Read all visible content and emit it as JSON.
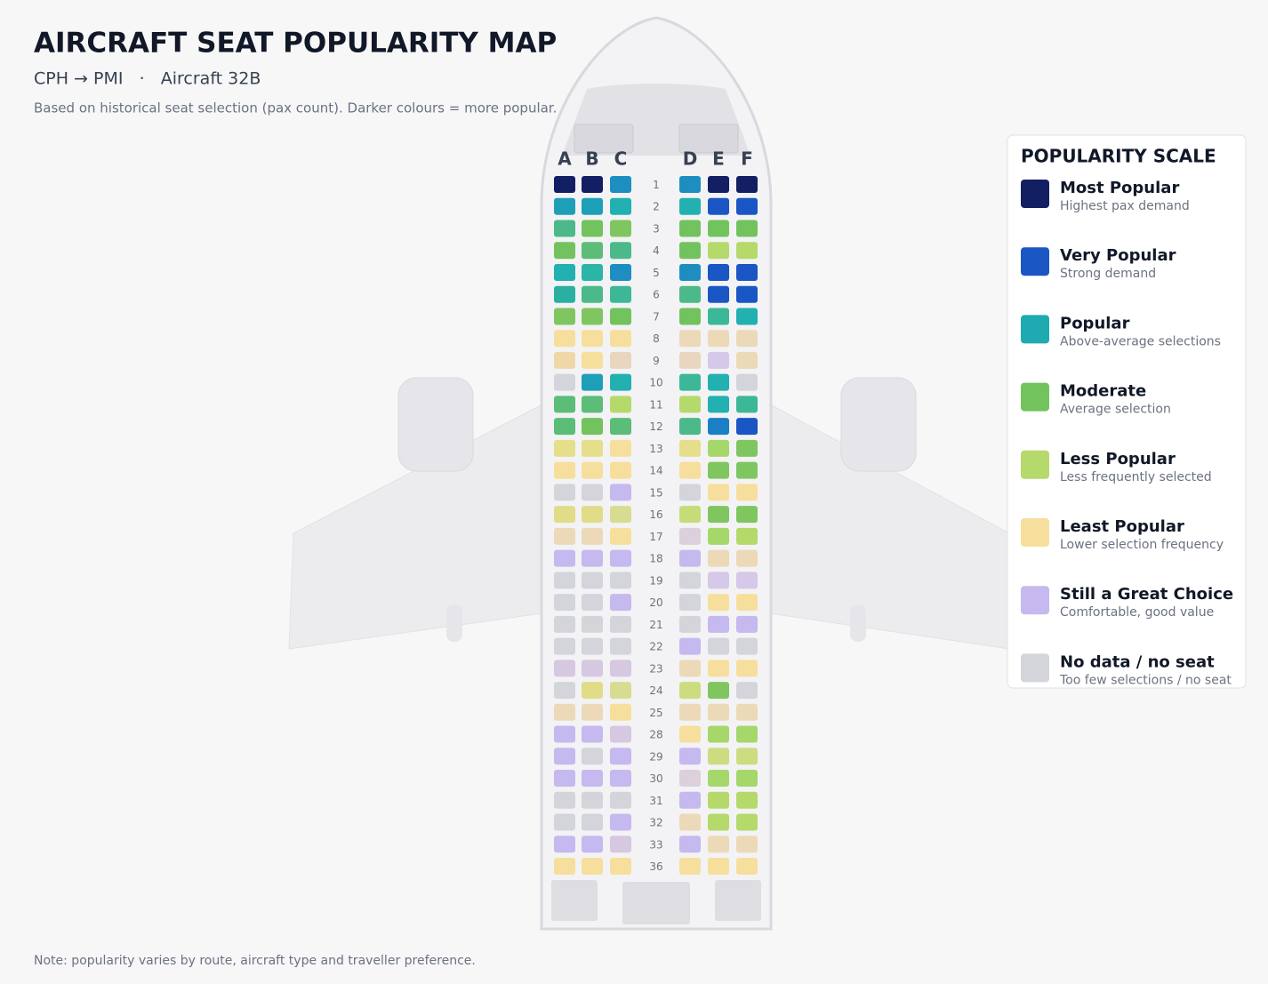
{
  "header": {
    "title": "AIRCRAFT SEAT POPULARITY MAP",
    "subtitle": "CPH → PMI   ·   Aircraft 32B",
    "description": "Based on historical seat selection (pax count). Darker colours = more popular."
  },
  "seat_map": {
    "columns": [
      "A",
      "B",
      "C",
      "D",
      "E",
      "F"
    ],
    "rows": [
      {
        "label": "1",
        "seats": [
          "#131f63",
          "#131f63",
          "#1e8ec0",
          "#1e8ec0",
          "#131f63",
          "#131f63"
        ]
      },
      {
        "label": "2",
        "seats": [
          "#1e9fb8",
          "#1e9fb8",
          "#22b0b0",
          "#22b0b0",
          "#1a56c4",
          "#1a56c4"
        ]
      },
      {
        "label": "3",
        "seats": [
          "#4cb98a",
          "#72c35e",
          "#80c660",
          "#72c35e",
          "#72c35e",
          "#72c35e"
        ]
      },
      {
        "label": "4",
        "seats": [
          "#72c35e",
          "#5cbd78",
          "#4cb98a",
          "#72c35e",
          "#b5d96a",
          "#b5d96a"
        ]
      },
      {
        "label": "5",
        "seats": [
          "#22b0b0",
          "#2ab5a8",
          "#1e8ec0",
          "#1e8ec0",
          "#1a56c4",
          "#1a56c4"
        ]
      },
      {
        "label": "6",
        "seats": [
          "#2ab0a0",
          "#4cb98a",
          "#3cb898",
          "#4cb98a",
          "#1a56c4",
          "#1a56c4"
        ]
      },
      {
        "label": "7",
        "seats": [
          "#80c660",
          "#80c660",
          "#72c35e",
          "#72c35e",
          "#3cb898",
          "#22b0b0"
        ]
      },
      {
        "label": "8",
        "seats": [
          "#f6df9c",
          "#f6df9c",
          "#f6df9c",
          "#ecd9b8",
          "#ecd9b8",
          "#ecd9b8"
        ]
      },
      {
        "label": "9",
        "seats": [
          "#efd8a8",
          "#f6df9c",
          "#e8d6c0",
          "#e8d6c0",
          "#d5c8e8",
          "#ecd9b8"
        ]
      },
      {
        "label": "10",
        "seats": [
          "#d4d5da",
          "#1e9fb8",
          "#22b0b0",
          "#3cb898",
          "#22b0b0",
          "#d4d5da"
        ]
      },
      {
        "label": "11",
        "seats": [
          "#5cbd78",
          "#5cbd78",
          "#b5d96a",
          "#b5d96a",
          "#22b0b0",
          "#3cb898"
        ]
      },
      {
        "label": "12",
        "seats": [
          "#5cbd78",
          "#72c35e",
          "#5cbd78",
          "#4cb98a",
          "#1a7fc4",
          "#1a56c4"
        ]
      },
      {
        "label": "13",
        "seats": [
          "#e5de8a",
          "#e5de8a",
          "#f6df9c",
          "#e5de8a",
          "#a5d76a",
          "#80c660"
        ]
      },
      {
        "label": "14",
        "seats": [
          "#f6df9c",
          "#f6df9c",
          "#f6df9c",
          "#f6df9c",
          "#80c660",
          "#80c660"
        ]
      },
      {
        "label": "15",
        "seats": [
          "#d4d5da",
          "#d4d5da",
          "#c5b9ef",
          "#d4d5da",
          "#f6df9c",
          "#f6df9c"
        ]
      },
      {
        "label": "16",
        "seats": [
          "#e0dc88",
          "#e0dc88",
          "#d8dc90",
          "#c5dc78",
          "#80c660",
          "#80c660"
        ]
      },
      {
        "label": "17",
        "seats": [
          "#ecd9b8",
          "#ecd9b8",
          "#f6df9c",
          "#dcd0dc",
          "#a5d76a",
          "#b5d96a"
        ]
      },
      {
        "label": "18",
        "seats": [
          "#c5b9ef",
          "#c5b9ef",
          "#c5b9ef",
          "#c5b9ef",
          "#ecd9b8",
          "#ecd9b8"
        ]
      },
      {
        "label": "19",
        "seats": [
          "#d4d5da",
          "#d4d5da",
          "#d4d5da",
          "#d4d5da",
          "#d5c8e8",
          "#d5c8e8"
        ]
      },
      {
        "label": "20",
        "seats": [
          "#d4d5da",
          "#d4d5da",
          "#c5b9ef",
          "#d4d5da",
          "#f6df9c",
          "#f6df9c"
        ]
      },
      {
        "label": "21",
        "seats": [
          "#d4d5da",
          "#d4d5da",
          "#d4d5da",
          "#d4d5da",
          "#c5b9ef",
          "#c5b9ef"
        ]
      },
      {
        "label": "22",
        "seats": [
          "#d4d5da",
          "#d4d5da",
          "#d4d5da",
          "#c5b9ef",
          "#d4d5da",
          "#d4d5da"
        ]
      },
      {
        "label": "23",
        "seats": [
          "#d5c8e0",
          "#d5c8e0",
          "#d5c8e0",
          "#ecd9b8",
          "#f6df9c",
          "#f6df9c"
        ]
      },
      {
        "label": "24",
        "seats": [
          "#d4d5da",
          "#e0dc88",
          "#d8dc90",
          "#ccdc80",
          "#80c660",
          "#d4d5da"
        ]
      },
      {
        "label": "25",
        "seats": [
          "#ecd9b8",
          "#ecd9b8",
          "#f6df9c",
          "#ecd9b8",
          "#ecd9b8",
          "#ecd9b8"
        ]
      },
      {
        "label": "28",
        "seats": [
          "#c5b9ef",
          "#c5b9ef",
          "#d5c8e0",
          "#f6df9c",
          "#a5d76a",
          "#a5d76a"
        ]
      },
      {
        "label": "29",
        "seats": [
          "#c5b9ef",
          "#d4d5da",
          "#c5b9ef",
          "#c5b9ef",
          "#ccdc80",
          "#ccdc80"
        ]
      },
      {
        "label": "30",
        "seats": [
          "#c5b9ef",
          "#c5b9ef",
          "#c5b9ef",
          "#dcd0dc",
          "#a5d76a",
          "#a5d76a"
        ]
      },
      {
        "label": "31",
        "seats": [
          "#d4d5da",
          "#d4d5da",
          "#d4d5da",
          "#c5b9ef",
          "#b5d96a",
          "#b5d96a"
        ]
      },
      {
        "label": "32",
        "seats": [
          "#d4d5da",
          "#d4d5da",
          "#c5b9ef",
          "#ecd9b8",
          "#b5d96a",
          "#b5d96a"
        ]
      },
      {
        "label": "33",
        "seats": [
          "#c5b9ef",
          "#c5b9ef",
          "#d5c8e0",
          "#c5b9ef",
          "#ecd9b8",
          "#ecd9b8"
        ]
      },
      {
        "label": "36",
        "seats": [
          "#f6df9c",
          "#f6df9c",
          "#f6df9c",
          "#f6df9c",
          "#f6df9c",
          "#f6df9c"
        ]
      }
    ]
  },
  "legend": {
    "title": "POPULARITY SCALE",
    "items": [
      {
        "label": "Most Popular",
        "description": "Highest pax demand",
        "color": "#131f63"
      },
      {
        "label": "Very Popular",
        "description": "Strong demand",
        "color": "#1a56c4"
      },
      {
        "label": "Popular",
        "description": "Above-average selections",
        "color": "#1eaab0"
      },
      {
        "label": "Moderate",
        "description": "Average selection",
        "color": "#72c35e"
      },
      {
        "label": "Less Popular",
        "description": "Less frequently selected",
        "color": "#b5d96a"
      },
      {
        "label": "Least Popular",
        "description": "Lower selection frequency",
        "color": "#f6df9c"
      },
      {
        "label": "Still a Great Choice",
        "description": "Comfortable, good value",
        "color": "#c5b9ef"
      },
      {
        "label": "No data / no seat",
        "description": "Too few selections / no seat",
        "color": "#d4d5da"
      }
    ]
  },
  "note": "Note: popularity varies by route, aircraft type and traveller preference."
}
